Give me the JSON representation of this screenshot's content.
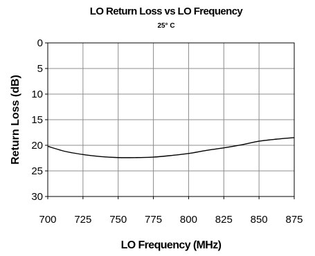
{
  "chart_data": {
    "type": "line",
    "title": "LO Return Loss vs LO Frequency",
    "subtitle": "25° C",
    "xlabel": "LO Frequency (MHz)",
    "ylabel": "Return Loss (dB)",
    "xlim": [
      700,
      875
    ],
    "ylim": [
      0,
      30
    ],
    "y_inverted": true,
    "grid": true,
    "x_ticks": [
      700,
      725,
      750,
      775,
      800,
      825,
      850,
      875
    ],
    "y_ticks": [
      0,
      5,
      10,
      15,
      20,
      25,
      30
    ],
    "series": [
      {
        "x": [
          700,
          712.5,
          725,
          737.5,
          750,
          762.5,
          775,
          787.5,
          800,
          812.5,
          825,
          837.5,
          850,
          862.5,
          875
        ],
        "y": [
          20.2,
          21.2,
          21.8,
          22.2,
          22.4,
          22.4,
          22.3,
          22.0,
          21.6,
          21.0,
          20.5,
          19.9,
          19.2,
          18.8,
          18.5
        ]
      }
    ]
  }
}
